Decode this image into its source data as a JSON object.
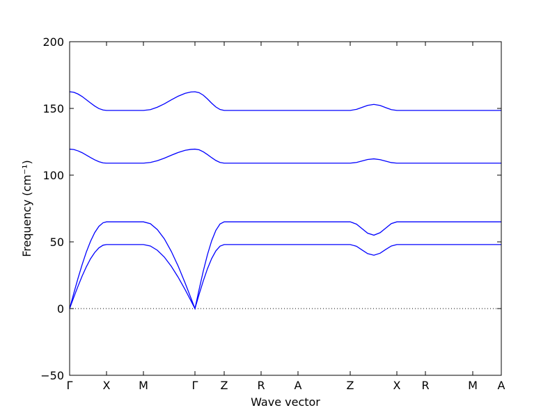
{
  "chart_data": {
    "type": "line",
    "xlabel": "Wave vector",
    "ylabel": "Frequency (cm⁻¹)",
    "xlim": [
      0,
      620
    ],
    "ylim": [
      -50,
      200
    ],
    "yticks": [
      {
        "value": -50,
        "label": "−50"
      },
      0,
      50,
      100,
      150,
      200
    ],
    "xticks": [
      {
        "value": 0,
        "label": "Γ"
      },
      {
        "value": 53,
        "label": "X"
      },
      {
        "value": 106,
        "label": "M"
      },
      {
        "value": 180,
        "label": "Γ"
      },
      {
        "value": 222,
        "label": "Z"
      },
      {
        "value": 275,
        "label": "R"
      },
      {
        "value": 328,
        "label": "A"
      },
      {
        "value": 403,
        "label": "Z"
      },
      {
        "value": 470,
        "label": "X"
      },
      {
        "value": 511,
        "label": "R"
      },
      {
        "value": 579,
        "label": "M"
      },
      {
        "value": 620,
        "label": "A"
      }
    ],
    "reference_line": 0,
    "x": [
      0,
      6,
      12,
      18,
      24,
      30,
      36,
      42,
      48,
      53,
      80,
      106,
      116,
      126,
      136,
      146,
      156,
      166,
      174,
      180,
      186,
      192,
      198,
      204,
      210,
      216,
      222,
      275,
      328,
      403,
      412,
      420,
      428,
      437,
      446,
      454,
      462,
      470,
      511,
      579,
      620
    ],
    "series": [
      {
        "color": "#0000ff",
        "values": [
          0,
          8.5,
          16.7,
          24.4,
          31.3,
          37.3,
          42.0,
          45.5,
          47.5,
          48,
          48,
          48,
          46.9,
          43.7,
          38.6,
          31.7,
          23.4,
          14.1,
          6.1,
          0,
          10.7,
          20.8,
          29.9,
          37.5,
          43.2,
          46.8,
          48,
          48,
          48,
          48,
          46.7,
          43.9,
          41.2,
          40,
          41.5,
          44.3,
          46.9,
          48,
          48,
          48,
          48
        ]
      },
      {
        "color": "#0000ff",
        "values": [
          0,
          11.5,
          22.6,
          33.0,
          42.4,
          50.4,
          56.9,
          61.6,
          64.3,
          65,
          65,
          65,
          63.6,
          59.2,
          52.3,
          42.9,
          31.7,
          19.0,
          8.2,
          0,
          14.4,
          28.2,
          40.5,
          50.8,
          58.6,
          63.4,
          65,
          65,
          65,
          65,
          63.3,
          59.9,
          56.5,
          55,
          56.9,
          60.3,
          63.7,
          65,
          65,
          65,
          65
        ]
      },
      {
        "color": "#0000ff",
        "values": [
          119.5,
          119.2,
          118.2,
          116.8,
          115.0,
          113.2,
          111.5,
          110.1,
          109.2,
          109,
          109,
          109,
          109.5,
          110.8,
          112.7,
          114.9,
          117.0,
          118.6,
          119.3,
          119.5,
          119.0,
          117.5,
          115.4,
          113.1,
          111.0,
          109.5,
          109,
          109,
          109,
          109,
          109.5,
          110.6,
          111.7,
          112.2,
          111.6,
          110.5,
          109.4,
          109,
          109,
          109,
          109
        ]
      },
      {
        "color": "#0000ff",
        "values": [
          162.5,
          162.1,
          160.8,
          158.9,
          156.5,
          154.1,
          151.8,
          149.9,
          148.8,
          148.5,
          148.5,
          148.5,
          149.1,
          150.9,
          153.4,
          156.4,
          159.2,
          161.3,
          162.3,
          162.5,
          161.8,
          159.9,
          157.1,
          153.9,
          151.1,
          149.2,
          148.5,
          148.5,
          148.5,
          148.5,
          149.3,
          150.8,
          152.3,
          153.0,
          152.2,
          150.6,
          149.1,
          148.5,
          148.5,
          148.5,
          148.5
        ]
      }
    ]
  }
}
